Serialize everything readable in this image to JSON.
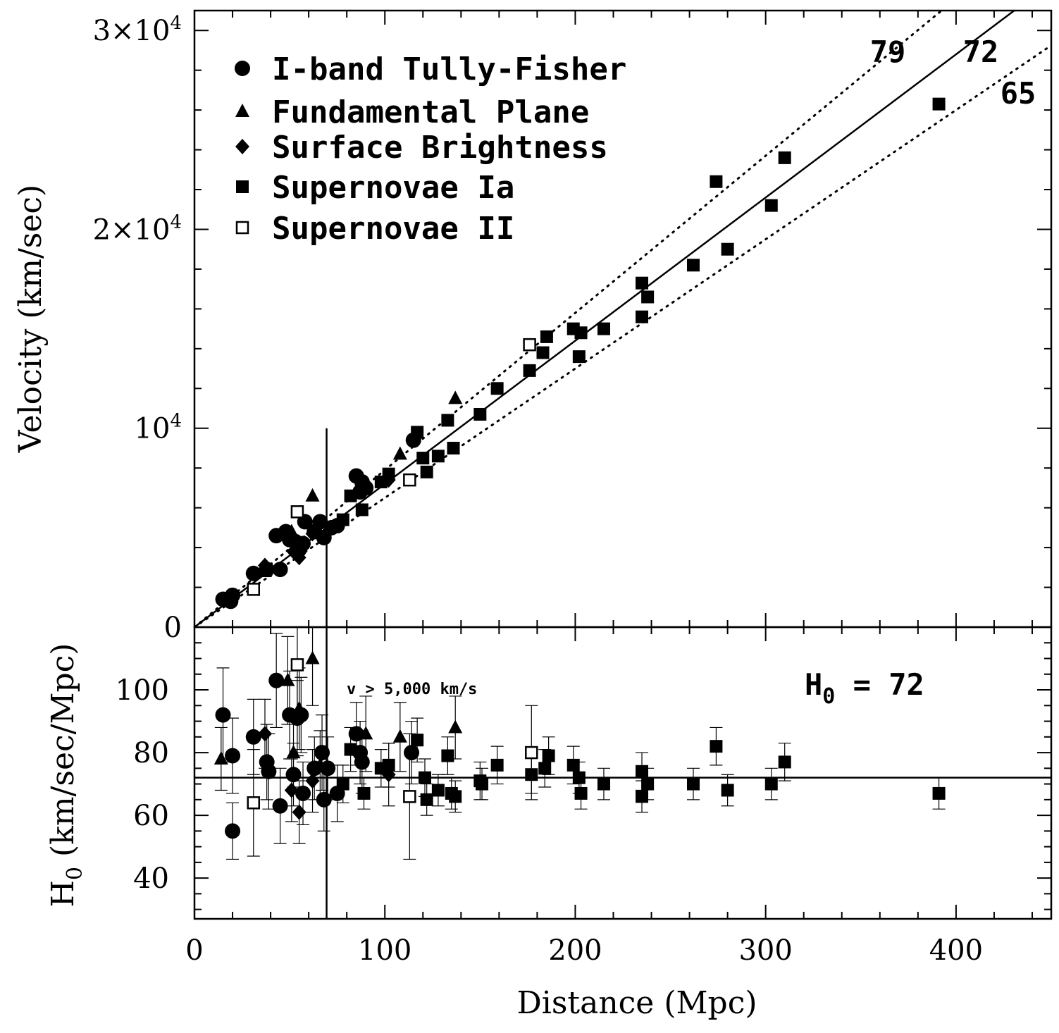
{
  "chart_data": [
    {
      "type": "scatter",
      "panel": "top",
      "xlabel": "Distance (Mpc)",
      "ylabel": "Velocity (km/sec)",
      "xlim": [
        0,
        450
      ],
      "ylim": [
        0,
        31000
      ],
      "yticks": [
        {
          "value": 0,
          "base": "0",
          "exp": ""
        },
        {
          "value": 10000,
          "base": "10",
          "exp": "4"
        },
        {
          "value": 20000,
          "base": "2×10",
          "exp": "4"
        },
        {
          "value": 30000,
          "base": "3×10",
          "exp": "4"
        }
      ],
      "legend": [
        {
          "marker": "circle",
          "label": "I-band Tully-Fisher"
        },
        {
          "marker": "triangle",
          "label": "Fundamental Plane"
        },
        {
          "marker": "diamond",
          "label": "Surface Brightness"
        },
        {
          "marker": "square",
          "label": "Supernovae Ia"
        },
        {
          "marker": "open-square",
          "label": "Supernovae II"
        }
      ],
      "lines": [
        {
          "slope": 79,
          "label": "79",
          "style": "dotted"
        },
        {
          "slope": 72,
          "label": "72",
          "style": "solid"
        },
        {
          "slope": 65,
          "label": "65",
          "style": "dotted"
        }
      ],
      "cut_distance": 69.4,
      "series": [
        {
          "name": "I-band Tully-Fisher",
          "marker": "circle",
          "points": [
            [
              15,
              1400
            ],
            [
              19,
              1300
            ],
            [
              20,
              1600
            ],
            [
              31,
              2700
            ],
            [
              38,
              2900
            ],
            [
              43,
              4600
            ],
            [
              45,
              2900
            ],
            [
              48,
              4800
            ],
            [
              50,
              4400
            ],
            [
              53,
              4300
            ],
            [
              55,
              3900
            ],
            [
              57,
              4200
            ],
            [
              58,
              5300
            ],
            [
              63,
              4800
            ],
            [
              66,
              5300
            ],
            [
              68,
              4500
            ],
            [
              72,
              5000
            ],
            [
              75,
              5100
            ],
            [
              85,
              7600
            ],
            [
              87,
              6800
            ],
            [
              88,
              7300
            ],
            [
              90,
              7000
            ],
            [
              115,
              9400
            ]
          ]
        },
        {
          "name": "Fundamental Plane",
          "marker": "triangle",
          "points": [
            [
              37,
              2800
            ],
            [
              51,
              4800
            ],
            [
              62,
              6600
            ],
            [
              108,
              8700
            ],
            [
              137,
              11500
            ]
          ]
        },
        {
          "name": "Surface Brightness",
          "marker": "diamond",
          "points": [
            [
              37,
              3100
            ],
            [
              52,
              3800
            ],
            [
              55,
              3500
            ],
            [
              62,
              4700
            ],
            [
              102,
              7400
            ]
          ]
        },
        {
          "name": "Supernovae Ia",
          "marker": "square",
          "points": [
            [
              78,
              5400
            ],
            [
              82,
              6600
            ],
            [
              88,
              5900
            ],
            [
              98,
              7300
            ],
            [
              102,
              7700
            ],
            [
              117,
              9800
            ],
            [
              120,
              8500
            ],
            [
              122,
              7800
            ],
            [
              128,
              8600
            ],
            [
              133,
              10400
            ],
            [
              136,
              9000
            ],
            [
              150,
              10700
            ],
            [
              159,
              12000
            ],
            [
              176,
              12900
            ],
            [
              183,
              13800
            ],
            [
              185,
              14600
            ],
            [
              199,
              15000
            ],
            [
              202,
              13600
            ],
            [
              203,
              14800
            ],
            [
              215,
              15000
            ],
            [
              235,
              17300
            ],
            [
              235,
              15600
            ],
            [
              238,
              16600
            ],
            [
              262,
              18200
            ],
            [
              274,
              22400
            ],
            [
              280,
              19000
            ],
            [
              303,
              21200
            ],
            [
              310,
              23600
            ],
            [
              391,
              26300
            ]
          ]
        },
        {
          "name": "Supernovae II",
          "marker": "open-square",
          "points": [
            [
              31,
              1900
            ],
            [
              54,
              5800
            ],
            [
              113,
              7400
            ],
            [
              176,
              14200
            ]
          ]
        }
      ]
    },
    {
      "type": "scatter",
      "panel": "bottom",
      "xlabel": "Distance (Mpc)",
      "ylabel": "H0 (km/sec/Mpc)",
      "ylabel_main": "H",
      "ylabel_sub": "0",
      "ylabel_rest": " (km/sec/Mpc)",
      "xlim": [
        0,
        450
      ],
      "ylim": [
        27,
        120
      ],
      "xticks": [
        0,
        100,
        200,
        300,
        400
      ],
      "yticks": [
        40,
        60,
        80,
        100
      ],
      "reference_line": 72,
      "annotation": "v > 5,000 km/s",
      "h0_label": {
        "main": "H",
        "sub": "0",
        "rest": " = 72"
      },
      "cut_distance": 69.4,
      "series": [
        {
          "name": "I-band Tully-Fisher",
          "marker": "circle",
          "points": [
            [
              15,
              92,
              15
            ],
            [
              20,
              79,
              12
            ],
            [
              20,
              55,
              9
            ],
            [
              31,
              85,
              12
            ],
            [
              38,
              77,
              12
            ],
            [
              39,
              74,
              12
            ],
            [
              43,
              103,
              15
            ],
            [
              45,
              63,
              12
            ],
            [
              50,
              92,
              14
            ],
            [
              52,
              73,
              10
            ],
            [
              54,
              91,
              12
            ],
            [
              56,
              92,
              12
            ],
            [
              57,
              67,
              10
            ],
            [
              63,
              75,
              10
            ],
            [
              67,
              80,
              12
            ],
            [
              68,
              65,
              10
            ],
            [
              70,
              75,
              10
            ],
            [
              75,
              67,
              9
            ],
            [
              85,
              86,
              10
            ],
            [
              87,
              80,
              10
            ],
            [
              88,
              77,
              10
            ],
            [
              114,
              80,
              10
            ]
          ]
        },
        {
          "name": "Fundamental Plane",
          "marker": "triangle",
          "points": [
            [
              14,
              78,
              10
            ],
            [
              49,
              103,
              14
            ],
            [
              52,
              80,
              11
            ],
            [
              55,
              94,
              13
            ],
            [
              62,
              110,
              15
            ],
            [
              66,
              76,
              11
            ],
            [
              90,
              86,
              12
            ],
            [
              108,
              85,
              11
            ],
            [
              137,
              88,
              10
            ]
          ]
        },
        {
          "name": "Surface Brightness",
          "marker": "diamond",
          "points": [
            [
              37,
              86,
              11
            ],
            [
              51,
              68,
              10
            ],
            [
              55,
              61,
              10
            ],
            [
              62,
              71,
              10
            ],
            [
              102,
              73,
              10
            ]
          ]
        },
        {
          "name": "Supernovae Ia",
          "marker": "square",
          "points": [
            [
              78,
              70,
              6
            ],
            [
              82,
              81,
              7
            ],
            [
              89,
              67,
              5
            ],
            [
              98,
              75,
              6
            ],
            [
              102,
              76,
              7
            ],
            [
              117,
              84,
              7
            ],
            [
              121,
              72,
              6
            ],
            [
              122,
              65,
              5
            ],
            [
              128,
              68,
              5
            ],
            [
              133,
              79,
              6
            ],
            [
              135,
              67,
              5
            ],
            [
              137,
              66,
              5
            ],
            [
              150,
              71,
              6
            ],
            [
              151,
              70,
              5
            ],
            [
              159,
              76,
              6
            ],
            [
              177,
              73,
              6
            ],
            [
              184,
              75,
              6
            ],
            [
              186,
              79,
              6
            ],
            [
              199,
              76,
              6
            ],
            [
              202,
              72,
              5
            ],
            [
              203,
              67,
              5
            ],
            [
              215,
              70,
              5
            ],
            [
              235,
              74,
              6
            ],
            [
              235,
              66,
              5
            ],
            [
              238,
              70,
              5
            ],
            [
              262,
              70,
              5
            ],
            [
              274,
              82,
              6
            ],
            [
              280,
              68,
              5
            ],
            [
              303,
              70,
              5
            ],
            [
              310,
              77,
              6
            ],
            [
              391,
              67,
              5
            ]
          ]
        },
        {
          "name": "Supernovae II",
          "marker": "open-square",
          "points": [
            [
              31,
              64,
              17
            ],
            [
              54,
              108,
              15
            ],
            [
              113,
              66,
              20
            ],
            [
              177,
              80,
              15
            ]
          ]
        }
      ]
    }
  ]
}
